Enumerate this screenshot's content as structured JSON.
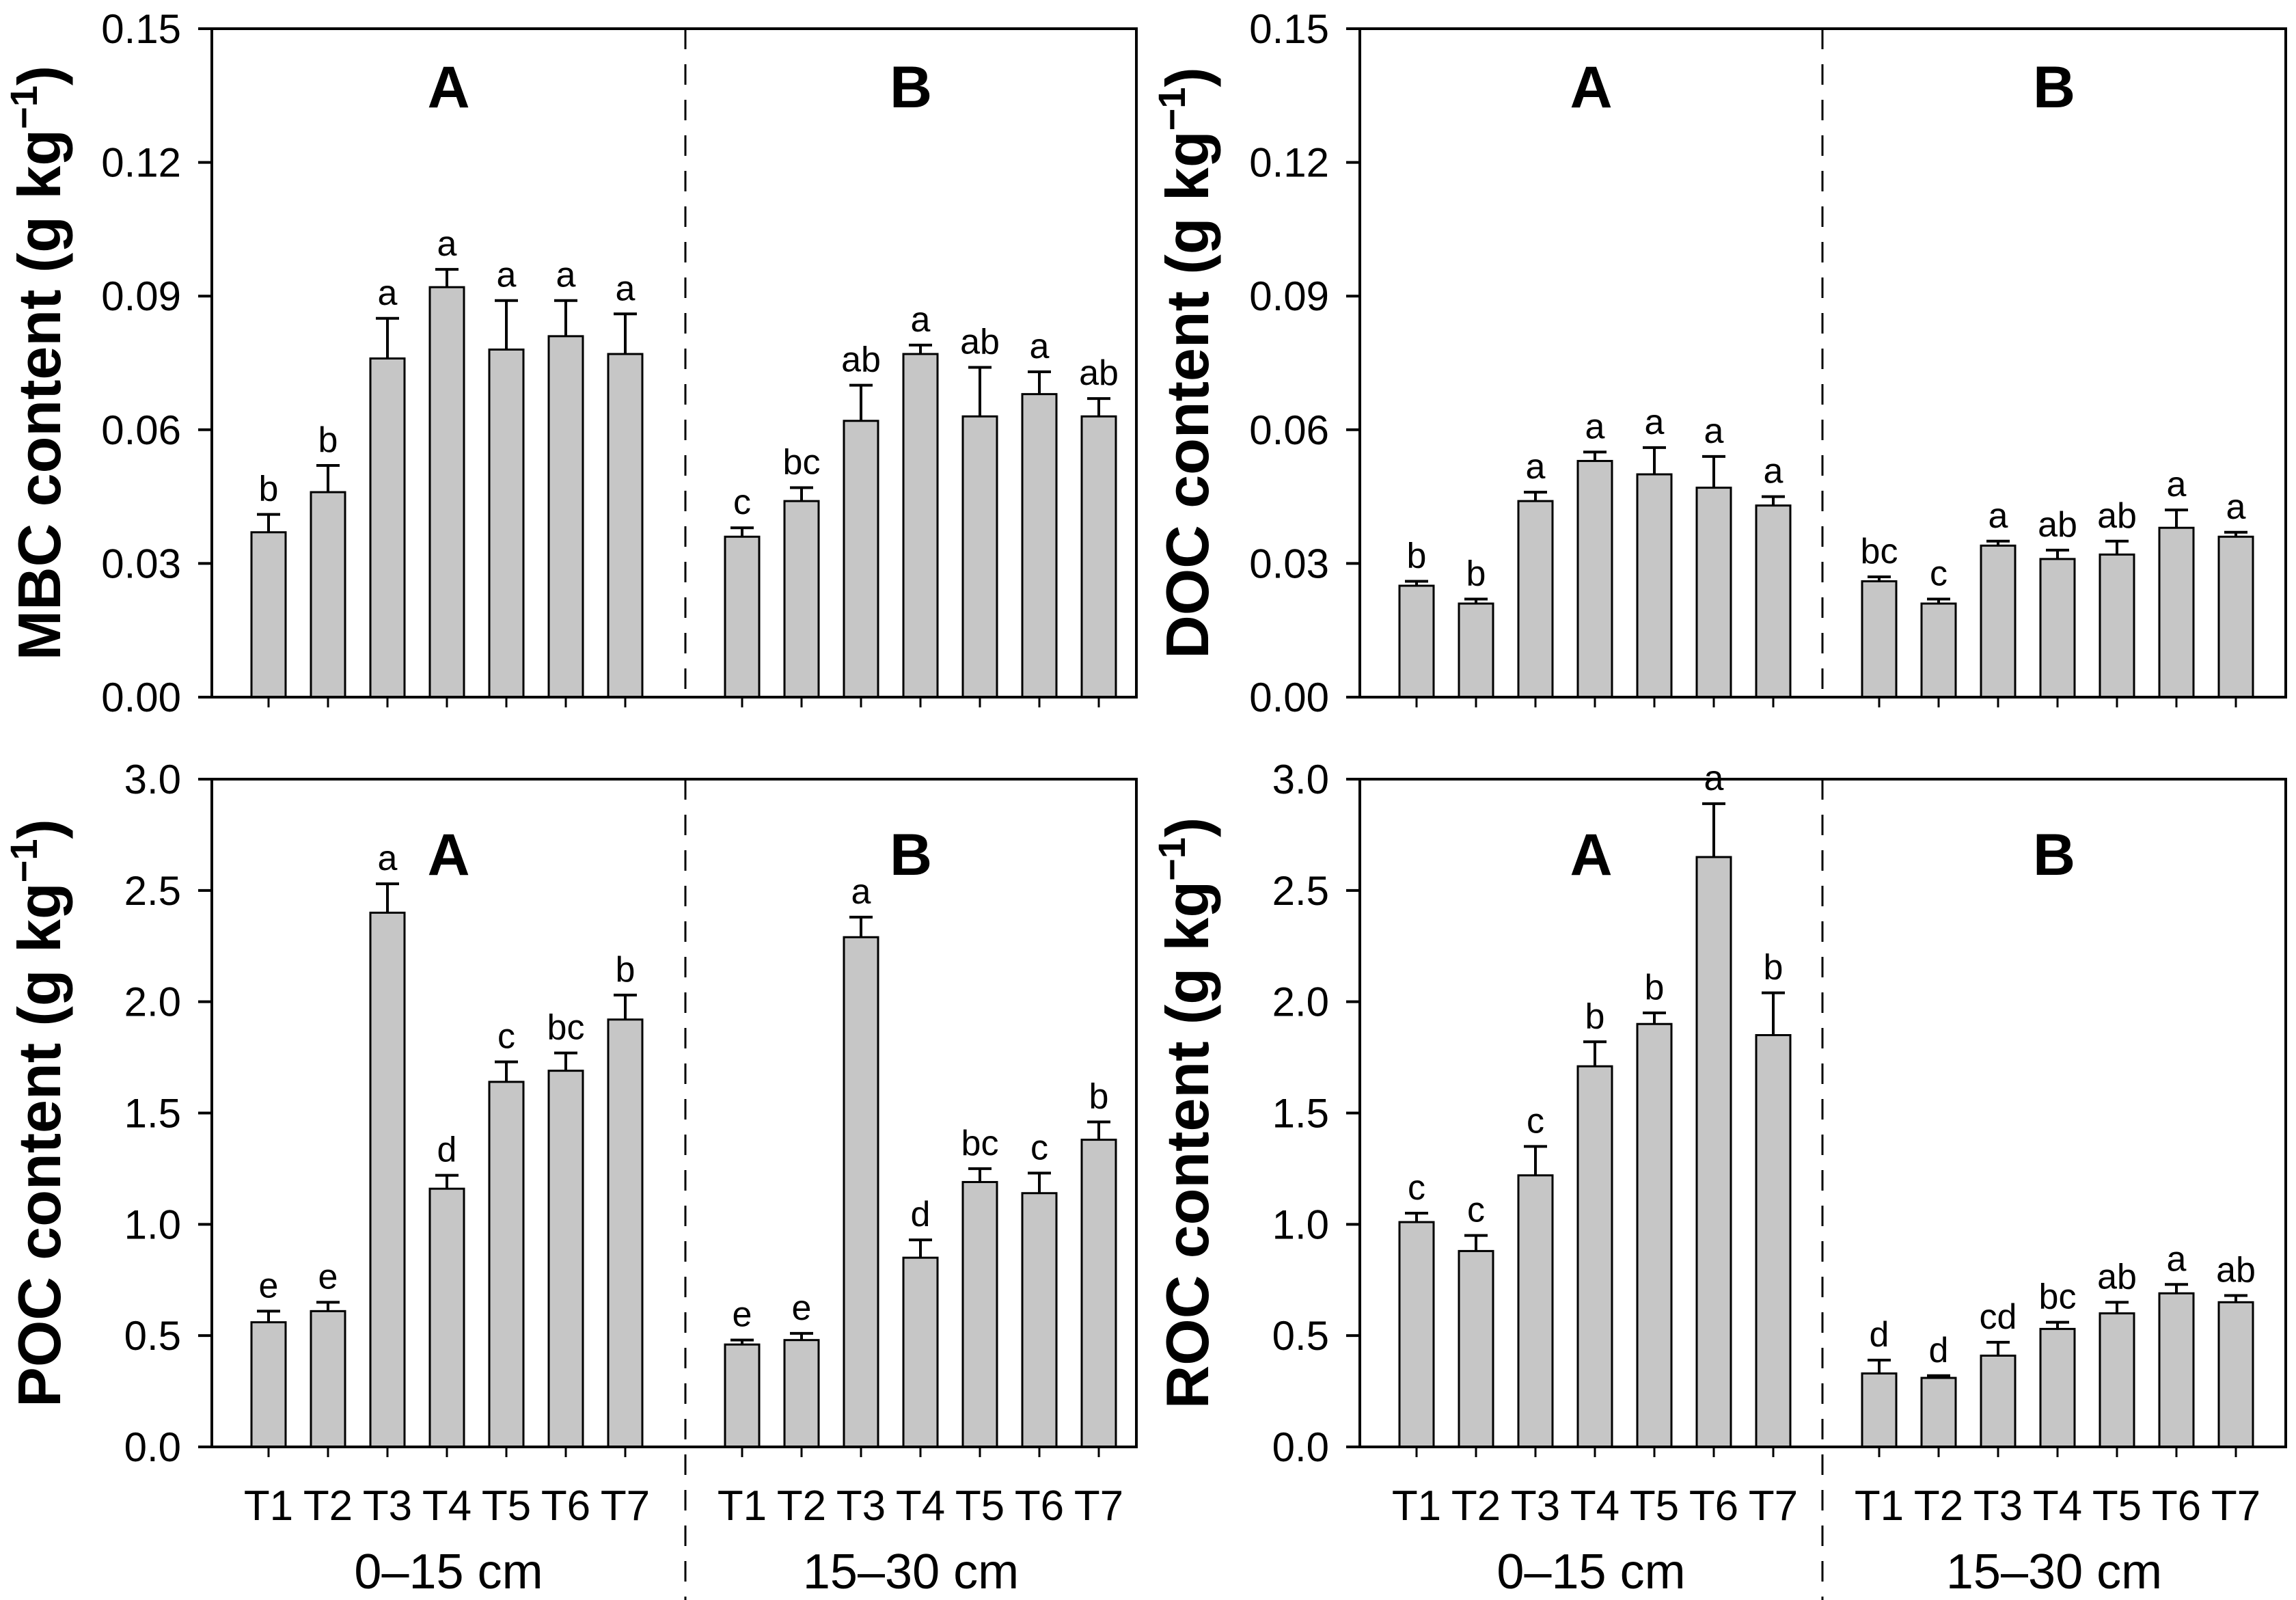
{
  "figure": {
    "background": "#ffffff",
    "bar_fill": "#c6c6c6",
    "bar_stroke": "#000000",
    "axis_color": "#000000",
    "divider_style": "dashed"
  },
  "chart_data": [
    {
      "id": "mbc",
      "type": "bar",
      "position": "top-left",
      "ylabel_pre": "MBC content (g kg",
      "ylabel_sup": "−1",
      "ylabel_post": ")",
      "ylim": [
        0,
        0.15
      ],
      "ytick_values": [
        0,
        0.03,
        0.06,
        0.09,
        0.12,
        0.15
      ],
      "ytick_labels": [
        "0.00",
        "0.03",
        "0.06",
        "0.09",
        "0.12",
        "0.15"
      ],
      "show_x_labels": false,
      "grid": false,
      "groups": [
        {
          "panel_letter": "A",
          "values": [
            0.037,
            0.046,
            0.076,
            0.092,
            0.078,
            0.081,
            0.077
          ],
          "error_tops": [
            0.041,
            0.052,
            0.085,
            0.096,
            0.089,
            0.089,
            0.086
          ],
          "sig_letters": [
            "b",
            "b",
            "a",
            "a",
            "a",
            "a",
            "a"
          ]
        },
        {
          "panel_letter": "B",
          "values": [
            0.036,
            0.044,
            0.062,
            0.077,
            0.063,
            0.068,
            0.063
          ],
          "error_tops": [
            0.038,
            0.047,
            0.07,
            0.079,
            0.074,
            0.073,
            0.067
          ],
          "sig_letters": [
            "c",
            "bc",
            "ab",
            "a",
            "ab",
            "a",
            "ab"
          ]
        }
      ]
    },
    {
      "id": "doc",
      "type": "bar",
      "position": "top-right",
      "ylabel_pre": "DOC content (g kg",
      "ylabel_sup": "−1",
      "ylabel_post": ")",
      "ylim": [
        0,
        0.15
      ],
      "ytick_values": [
        0,
        0.03,
        0.06,
        0.09,
        0.12,
        0.15
      ],
      "ytick_labels": [
        "0.00",
        "0.03",
        "0.06",
        "0.09",
        "0.12",
        "0.15"
      ],
      "show_x_labels": false,
      "grid": false,
      "groups": [
        {
          "panel_letter": "A",
          "values": [
            0.025,
            0.021,
            0.044,
            0.053,
            0.05,
            0.047,
            0.043
          ],
          "error_tops": [
            0.026,
            0.022,
            0.046,
            0.055,
            0.056,
            0.054,
            0.045
          ],
          "sig_letters": [
            "b",
            "b",
            "a",
            "a",
            "a",
            "a",
            "a"
          ]
        },
        {
          "panel_letter": "B",
          "values": [
            0.026,
            0.021,
            0.034,
            0.031,
            0.032,
            0.038,
            0.036
          ],
          "error_tops": [
            0.027,
            0.022,
            0.035,
            0.033,
            0.035,
            0.042,
            0.037
          ],
          "sig_letters": [
            "bc",
            "c",
            "a",
            "ab",
            "ab",
            "a",
            "a"
          ]
        }
      ]
    },
    {
      "id": "poc",
      "type": "bar",
      "position": "bottom-left",
      "ylabel_pre": "POC content (g kg",
      "ylabel_sup": "−1",
      "ylabel_post": ")",
      "ylim": [
        0,
        3.0
      ],
      "ytick_values": [
        0,
        0.5,
        1.0,
        1.5,
        2.0,
        2.5,
        3.0
      ],
      "ytick_labels": [
        "0.0",
        "0.5",
        "1.0",
        "1.5",
        "2.0",
        "2.5",
        "3.0"
      ],
      "show_x_labels": true,
      "grid": false,
      "categories": [
        "T1",
        "T2",
        "T3",
        "T4",
        "T5",
        "T6",
        "T7"
      ],
      "groups": [
        {
          "panel_letter": "A",
          "depth_label": "0–15 cm",
          "values": [
            0.56,
            0.61,
            2.4,
            1.16,
            1.64,
            1.69,
            1.92
          ],
          "error_tops": [
            0.61,
            0.65,
            2.53,
            1.22,
            1.73,
            1.77,
            2.03
          ],
          "sig_letters": [
            "e",
            "e",
            "a",
            "d",
            "c",
            "bc",
            "b"
          ]
        },
        {
          "panel_letter": "B",
          "depth_label": "15–30 cm",
          "values": [
            0.46,
            0.48,
            2.29,
            0.85,
            1.19,
            1.14,
            1.38
          ],
          "error_tops": [
            0.48,
            0.51,
            2.38,
            0.93,
            1.25,
            1.23,
            1.46
          ],
          "sig_letters": [
            "e",
            "e",
            "a",
            "d",
            "bc",
            "c",
            "b"
          ]
        }
      ]
    },
    {
      "id": "roc",
      "type": "bar",
      "position": "bottom-right",
      "ylabel_pre": "ROC content (g kg",
      "ylabel_sup": "−1",
      "ylabel_post": ")",
      "ylim": [
        0,
        3.0
      ],
      "ytick_values": [
        0,
        0.5,
        1.0,
        1.5,
        2.0,
        2.5,
        3.0
      ],
      "ytick_labels": [
        "0.0",
        "0.5",
        "1.0",
        "1.5",
        "2.0",
        "2.5",
        "3.0"
      ],
      "show_x_labels": true,
      "grid": false,
      "categories": [
        "T1",
        "T2",
        "T3",
        "T4",
        "T5",
        "T6",
        "T7"
      ],
      "groups": [
        {
          "panel_letter": "A",
          "depth_label": "0–15 cm",
          "values": [
            1.01,
            0.88,
            1.22,
            1.71,
            1.9,
            2.65,
            1.85
          ],
          "error_tops": [
            1.05,
            0.95,
            1.35,
            1.82,
            1.95,
            2.89,
            2.04
          ],
          "sig_letters": [
            "c",
            "c",
            "c",
            "b",
            "b",
            "a",
            "b"
          ]
        },
        {
          "panel_letter": "B",
          "depth_label": "15–30 cm",
          "values": [
            0.33,
            0.31,
            0.41,
            0.53,
            0.6,
            0.69,
            0.65
          ],
          "error_tops": [
            0.39,
            0.32,
            0.47,
            0.56,
            0.65,
            0.73,
            0.68
          ],
          "sig_letters": [
            "d",
            "d",
            "cd",
            "bc",
            "ab",
            "a",
            "ab"
          ]
        }
      ]
    }
  ]
}
